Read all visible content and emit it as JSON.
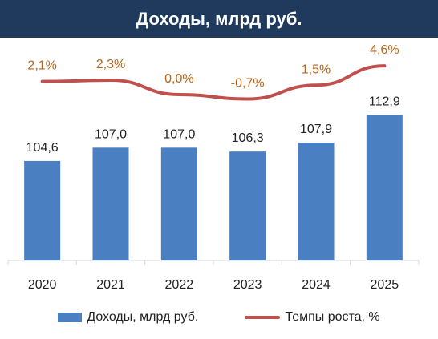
{
  "title": "Доходы, млрд руб.",
  "colors": {
    "header_bg": "#1f3a5c",
    "bars": "#4a7fc1",
    "line": "#c0504d",
    "growth_labels": "#b5651d",
    "axis": "#d9d9d9",
    "text": "#222222"
  },
  "legend": {
    "bars_label": "Доходы, млрд руб.",
    "line_label": "Темпы роста, %"
  },
  "chart_data": {
    "type": "bar",
    "categories": [
      "2020",
      "2021",
      "2022",
      "2023",
      "2024",
      "2025"
    ],
    "series": [
      {
        "name": "Доходы, млрд руб.",
        "type": "bar",
        "values": [
          104.6,
          107.0,
          107.0,
          106.3,
          107.9,
          112.9
        ],
        "labels": [
          "104,6",
          "107,0",
          "107,0",
          "106,3",
          "107,9",
          "112,9"
        ]
      },
      {
        "name": "Темпы роста, %",
        "type": "line",
        "values": [
          2.1,
          2.3,
          0.0,
          -0.7,
          1.5,
          4.6
        ],
        "labels": [
          "2,1%",
          "2,3%",
          "0,0%",
          "-0,7%",
          "1,5%",
          "4,6%"
        ]
      }
    ],
    "title": "Доходы, млрд руб.",
    "legend_position": "bottom",
    "grid": false
  }
}
